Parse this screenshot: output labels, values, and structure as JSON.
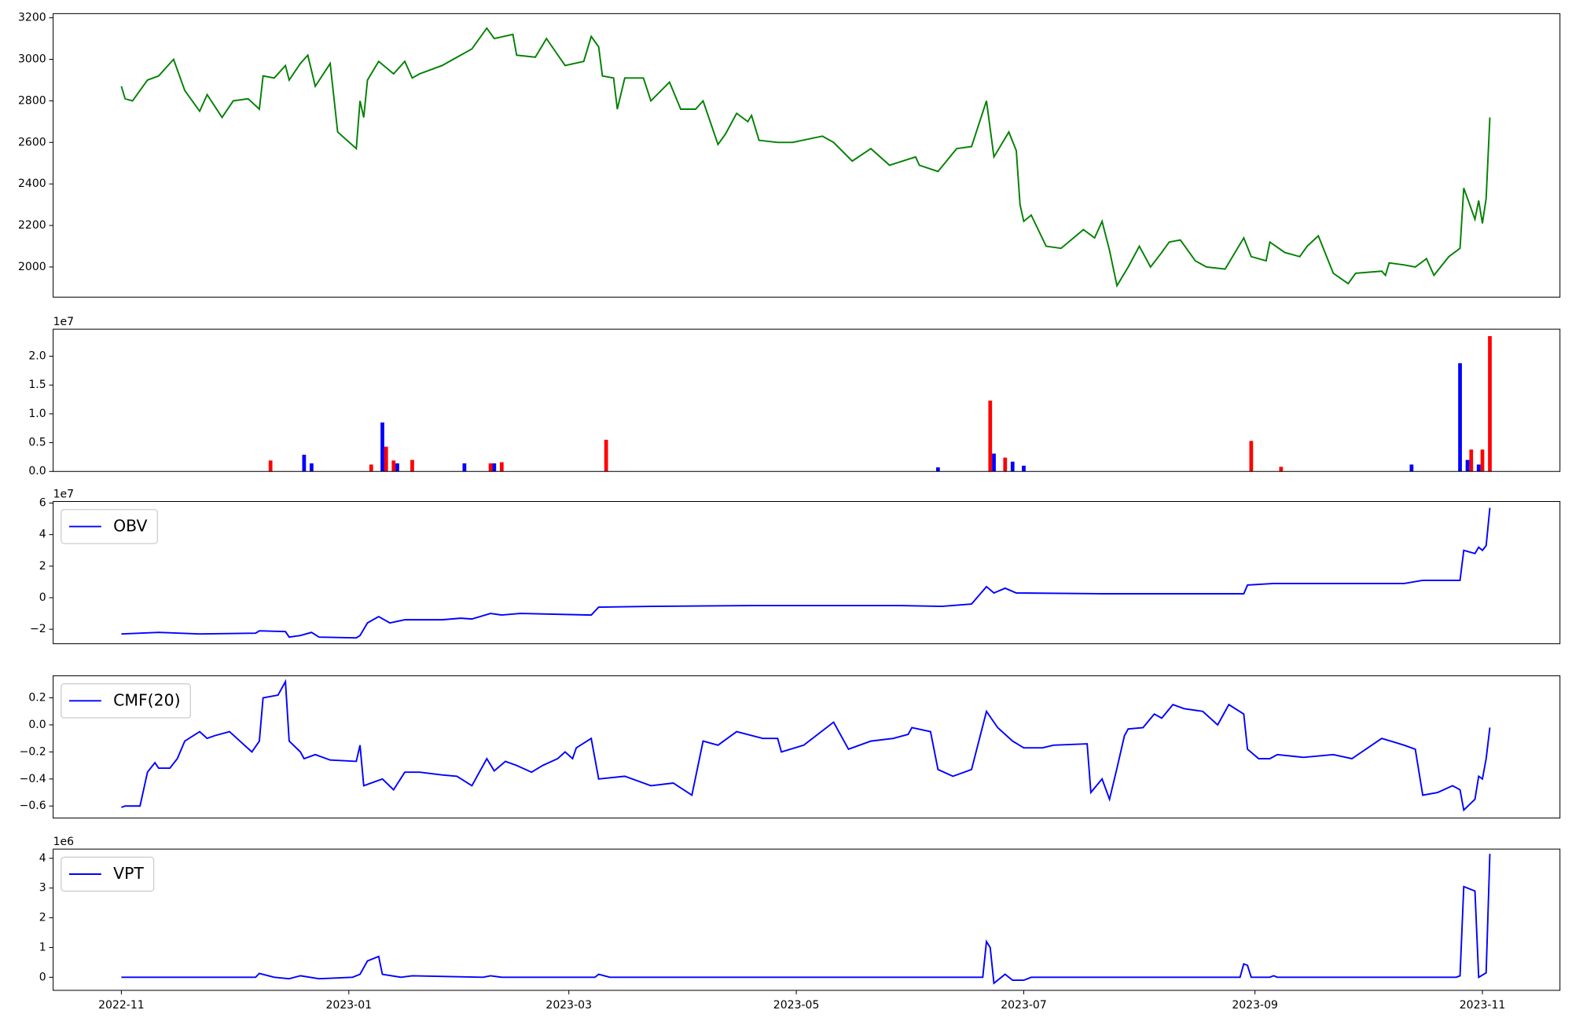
{
  "chart_data": [
    {
      "type": "line",
      "xlim": [
        -18.3,
        385.8
      ],
      "ylim": [
        1855,
        3220
      ],
      "yticks": [
        2000,
        2200,
        2400,
        2600,
        2800,
        3000,
        3200
      ],
      "series": [
        {
          "color": "green",
          "x": [
            0,
            1,
            3,
            7,
            10,
            14,
            17,
            21,
            23,
            27,
            30,
            34,
            37,
            38,
            41,
            44,
            45,
            48,
            50,
            52,
            56,
            58,
            63,
            64,
            65,
            66,
            69,
            73,
            76,
            78,
            80,
            86,
            90,
            94,
            98,
            100,
            105,
            106,
            111,
            114,
            119,
            124,
            126,
            128,
            129,
            132,
            133,
            135,
            140,
            142,
            147,
            150,
            154,
            156,
            160,
            162,
            165,
            168,
            169,
            171,
            176,
            180,
            188,
            191,
            196,
            201,
            206,
            213,
            214,
            219,
            224,
            228,
            232,
            234,
            238,
            240,
            241,
            242,
            244,
            248,
            252,
            258,
            261,
            263,
            265,
            267,
            270,
            273,
            276,
            279,
            281,
            284,
            288,
            291,
            296,
            301,
            303,
            307,
            308,
            312,
            316,
            318,
            321,
            325,
            329,
            331,
            338,
            339,
            340,
            344,
            347,
            350,
            352,
            356,
            359,
            360,
            363,
            364,
            365,
            366,
            367
          ],
          "values": [
            2870,
            2810,
            2800,
            2900,
            2920,
            3000,
            2850,
            2750,
            2830,
            2720,
            2800,
            2810,
            2760,
            2920,
            2910,
            2970,
            2900,
            2980,
            3020,
            2870,
            2980,
            2650,
            2570,
            2800,
            2720,
            2900,
            2990,
            2930,
            2990,
            2910,
            2930,
            2970,
            3010,
            3050,
            3150,
            3100,
            3120,
            3020,
            3010,
            3100,
            2970,
            2990,
            3110,
            3060,
            2920,
            2910,
            2760,
            2910,
            2910,
            2800,
            2890,
            2760,
            2760,
            2800,
            2590,
            2640,
            2740,
            2700,
            2730,
            2610,
            2600,
            2600,
            2630,
            2600,
            2510,
            2570,
            2490,
            2530,
            2490,
            2460,
            2570,
            2580,
            2800,
            2530,
            2650,
            2560,
            2300,
            2220,
            2250,
            2100,
            2090,
            2180,
            2140,
            2220,
            2080,
            1910,
            2000,
            2100,
            2000,
            2070,
            2120,
            2130,
            2030,
            2000,
            1990,
            2140,
            2050,
            2030,
            2120,
            2070,
            2050,
            2100,
            2150,
            1970,
            1920,
            1970,
            1980,
            1960,
            2020,
            2010,
            2000,
            2040,
            1960,
            2050,
            2090,
            2380,
            2230,
            2320,
            2210,
            2330,
            2720
          ]
        }
      ]
    },
    {
      "type": "bar",
      "y_offset_label": "1e7",
      "xlim": [
        -18.3,
        385.8
      ],
      "ylim": [
        0,
        2.47
      ],
      "yticks": [
        {
          "value": 0,
          "label": "0.0"
        },
        0.5,
        {
          "value": 1,
          "label": "1.0"
        },
        1.5,
        {
          "value": 2,
          "label": "2.0"
        }
      ],
      "series": [
        {
          "color": "red",
          "x": [
            40,
            67,
            71,
            73,
            78,
            99,
            102,
            130,
            233,
            237,
            303,
            311,
            362,
            365,
            367
          ],
          "values": [
            0.19,
            0.12,
            0.43,
            0.19,
            0.2,
            0.14,
            0.16,
            0.55,
            1.23,
            0.24,
            0.53,
            0.08,
            0.38,
            0.38,
            2.35
          ]
        },
        {
          "color": "blue",
          "x": [
            49,
            51,
            70,
            74,
            92,
            100,
            219,
            234,
            239,
            242,
            346,
            359,
            361,
            364
          ],
          "values": [
            0.29,
            0.14,
            0.85,
            0.14,
            0.14,
            0.14,
            0.07,
            0.31,
            0.17,
            0.1,
            0.12,
            1.88,
            0.2,
            0.12
          ]
        }
      ]
    },
    {
      "type": "line",
      "y_offset_label": "1e7",
      "legend": "upper left",
      "xlim": [
        -18.3,
        385.8
      ],
      "ylim": [
        -2.92,
        6.1
      ],
      "yticks": [
        {
          "value": -2,
          "label": "−2"
        },
        0,
        2,
        4,
        6
      ],
      "series": [
        {
          "name": "OBV",
          "color": "blue",
          "x": [
            0,
            10,
            21,
            36,
            37,
            44,
            45,
            48,
            51,
            53,
            63,
            64,
            66,
            69,
            72,
            76,
            86,
            91,
            94,
            99,
            102,
            107,
            126,
            128,
            142,
            169,
            209,
            220,
            228,
            232,
            234,
            237,
            240,
            263,
            301,
            302,
            309,
            344,
            349,
            359,
            360,
            363,
            364,
            365,
            366,
            367
          ],
          "values": [
            -2.3,
            -2.2,
            -2.3,
            -2.25,
            -2.1,
            -2.15,
            -2.5,
            -2.4,
            -2.2,
            -2.5,
            -2.55,
            -2.4,
            -1.6,
            -1.2,
            -1.6,
            -1.4,
            -1.4,
            -1.3,
            -1.35,
            -1.0,
            -1.1,
            -1.0,
            -1.1,
            -0.6,
            -0.55,
            -0.5,
            -0.5,
            -0.55,
            -0.4,
            0.7,
            0.3,
            0.6,
            0.3,
            0.25,
            0.25,
            0.8,
            0.9,
            0.9,
            1.1,
            1.1,
            3.0,
            2.8,
            3.2,
            3.0,
            3.3,
            5.7
          ]
        }
      ]
    },
    {
      "type": "line",
      "legend": "upper left",
      "xlim": [
        -18.3,
        385.8
      ],
      "ylim": [
        -0.689,
        0.363
      ],
      "yticks": [
        {
          "value": -0.6,
          "label": "−0.6"
        },
        {
          "value": -0.4,
          "label": "−0.4"
        },
        {
          "value": -0.2,
          "label": "−0.2"
        },
        {
          "value": 0,
          "label": "0.0"
        },
        0.2
      ],
      "series": [
        {
          "name": "CMF(20)",
          "color": "blue",
          "x": [
            0,
            1,
            5,
            7,
            9,
            10,
            13,
            15,
            17,
            21,
            23,
            25,
            29,
            31,
            33,
            35,
            37,
            38,
            42,
            44,
            45,
            48,
            49,
            52,
            56,
            63,
            64,
            65,
            70,
            73,
            76,
            80,
            86,
            90,
            94,
            98,
            100,
            103,
            106,
            110,
            113,
            117,
            119,
            121,
            122,
            126,
            128,
            135,
            142,
            148,
            153,
            156,
            160,
            165,
            172,
            176,
            177,
            183,
            191,
            195,
            201,
            207,
            211,
            212,
            217,
            219,
            223,
            226,
            228,
            232,
            235,
            239,
            242,
            247,
            250,
            259,
            260,
            263,
            265,
            267,
            269,
            270,
            274,
            277,
            279,
            282,
            285,
            290,
            294,
            297,
            301,
            302,
            305,
            308,
            310,
            317,
            325,
            330,
            338,
            344,
            347,
            349,
            353,
            357,
            359,
            360,
            363,
            364,
            365,
            366,
            367
          ],
          "values": [
            -0.61,
            -0.6,
            -0.6,
            -0.35,
            -0.28,
            -0.32,
            -0.32,
            -0.25,
            -0.12,
            -0.05,
            -0.1,
            -0.08,
            -0.05,
            -0.1,
            -0.15,
            -0.2,
            -0.12,
            0.2,
            0.22,
            0.32,
            -0.12,
            -0.2,
            -0.25,
            -0.22,
            -0.26,
            -0.27,
            -0.15,
            -0.45,
            -0.4,
            -0.48,
            -0.35,
            -0.35,
            -0.37,
            -0.38,
            -0.45,
            -0.25,
            -0.34,
            -0.27,
            -0.3,
            -0.35,
            -0.3,
            -0.25,
            -0.2,
            -0.25,
            -0.17,
            -0.1,
            -0.4,
            -0.38,
            -0.45,
            -0.43,
            -0.52,
            -0.12,
            -0.15,
            -0.05,
            -0.1,
            -0.1,
            -0.2,
            -0.15,
            0.02,
            -0.18,
            -0.12,
            -0.1,
            -0.07,
            -0.02,
            -0.05,
            -0.33,
            -0.38,
            -0.35,
            -0.33,
            0.1,
            -0.02,
            -0.12,
            -0.17,
            -0.17,
            -0.15,
            -0.14,
            -0.5,
            -0.4,
            -0.55,
            -0.32,
            -0.08,
            -0.03,
            -0.02,
            0.08,
            0.05,
            0.15,
            0.12,
            0.1,
            0.0,
            0.15,
            0.08,
            -0.18,
            -0.25,
            -0.25,
            -0.22,
            -0.24,
            -0.22,
            -0.25,
            -0.1,
            -0.15,
            -0.18,
            -0.52,
            -0.5,
            -0.45,
            -0.48,
            -0.63,
            -0.55,
            -0.38,
            -0.4,
            -0.25,
            -0.02
          ]
        }
      ]
    },
    {
      "type": "line",
      "y_offset_label": "1e6",
      "legend": "upper left",
      "xlim": [
        -18.3,
        385.8
      ],
      "ylim": [
        -0.44,
        4.31
      ],
      "yticks": [
        0,
        1,
        2,
        3,
        4
      ],
      "xticks": [
        {
          "value": 0,
          "label": "2022-11"
        },
        {
          "value": 61,
          "label": "2023-01"
        },
        {
          "value": 120,
          "label": "2023-03"
        },
        {
          "value": 181,
          "label": "2023-05"
        },
        {
          "value": 242,
          "label": "2023-07"
        },
        {
          "value": 304,
          "label": "2023-09"
        },
        {
          "value": 365,
          "label": "2023-11"
        }
      ],
      "series": [
        {
          "name": "VPT",
          "color": "blue",
          "x": [
            0,
            21,
            36,
            37,
            41,
            45,
            48,
            53,
            62,
            64,
            66,
            69,
            70,
            75,
            78,
            97,
            99,
            102,
            127,
            128,
            131,
            209,
            231,
            232,
            233,
            234,
            237,
            239,
            242,
            244,
            300,
            301,
            302,
            303,
            308,
            309,
            310,
            358,
            359,
            360,
            363,
            364,
            366,
            367
          ],
          "values": [
            0,
            0,
            0,
            0.13,
            0,
            -0.05,
            0.05,
            -0.05,
            0,
            0.1,
            0.55,
            0.7,
            0.1,
            0,
            0.05,
            0,
            0.05,
            0,
            0,
            0.1,
            0,
            0,
            0,
            1.2,
            1.0,
            -0.2,
            0.1,
            -0.1,
            -0.1,
            0,
            0,
            0.45,
            0.4,
            0,
            0,
            0.05,
            0,
            0,
            0.05,
            3.05,
            2.9,
            0,
            0.15,
            4.15
          ]
        }
      ]
    }
  ]
}
